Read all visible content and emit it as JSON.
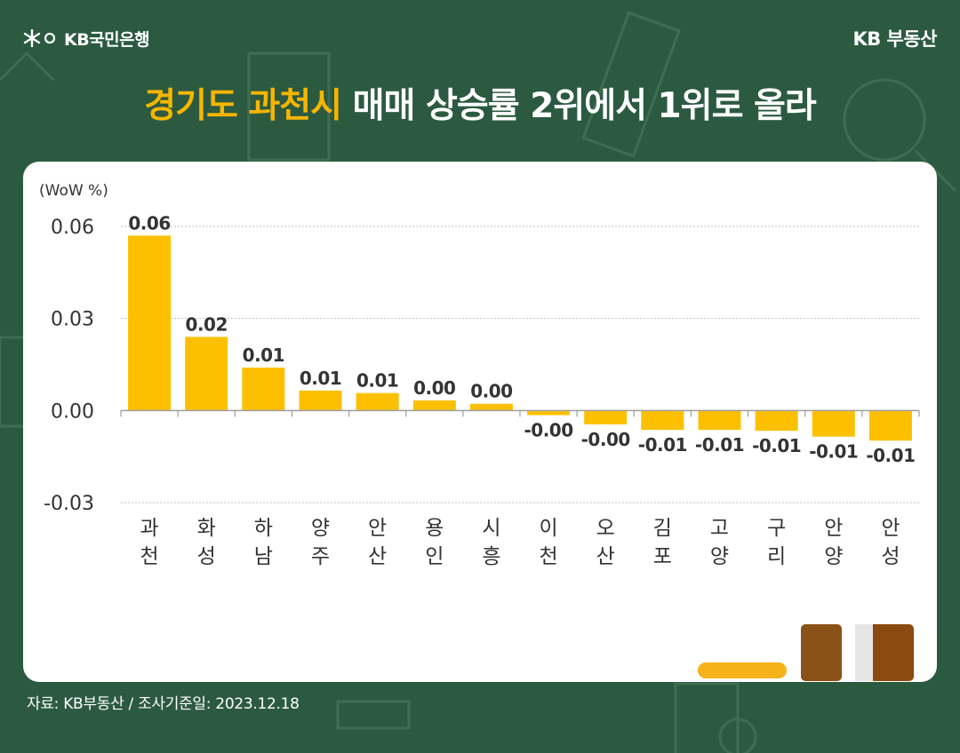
{
  "header": {
    "bank_name": "KB국민은행",
    "brand": "KB 부동산"
  },
  "title": {
    "highlight": "경기도 과천시",
    "rest": " 매매 상승률 2위에서 1위로 올라"
  },
  "source": "자료: KB부동산 / 조사기준일: 2023.12.18",
  "colors": {
    "background": "#2b5a40",
    "accent": "#f7b500",
    "bar": "#fcc000",
    "text": "#333333"
  },
  "chart_data": {
    "type": "bar",
    "unit_label": "(WoW %)",
    "ylim": [
      -0.03,
      0.06
    ],
    "yticks": [
      {
        "value": 0.06,
        "label": "0.06"
      },
      {
        "value": 0.03,
        "label": "0.03"
      },
      {
        "value": 0.0,
        "label": "0.00"
      },
      {
        "value": -0.03,
        "label": "-0.03"
      }
    ],
    "grid": true,
    "categories": [
      [
        "과",
        "천"
      ],
      [
        "화",
        "성"
      ],
      [
        "하",
        "남"
      ],
      [
        "양",
        "주"
      ],
      [
        "안",
        "산"
      ],
      [
        "용",
        "인"
      ],
      [
        "시",
        "흥"
      ],
      [
        "이",
        "천"
      ],
      [
        "오",
        "산"
      ],
      [
        "김",
        "포"
      ],
      [
        "고",
        "양"
      ],
      [
        "구",
        "리"
      ],
      [
        "안",
        "양"
      ],
      [
        "안",
        "성"
      ]
    ],
    "values": [
      0.057,
      0.024,
      0.014,
      0.0065,
      0.0057,
      0.0033,
      0.0022,
      -0.0015,
      -0.0045,
      -0.0063,
      -0.0063,
      -0.0066,
      -0.0085,
      -0.0098
    ],
    "data_labels": [
      "0.06",
      "0.02",
      "0.01",
      "0.01",
      "0.01",
      "0.00",
      "0.00",
      "-0.00",
      "-0.00",
      "-0.01",
      "-0.01",
      "-0.01",
      "-0.01",
      "-0.01"
    ]
  }
}
